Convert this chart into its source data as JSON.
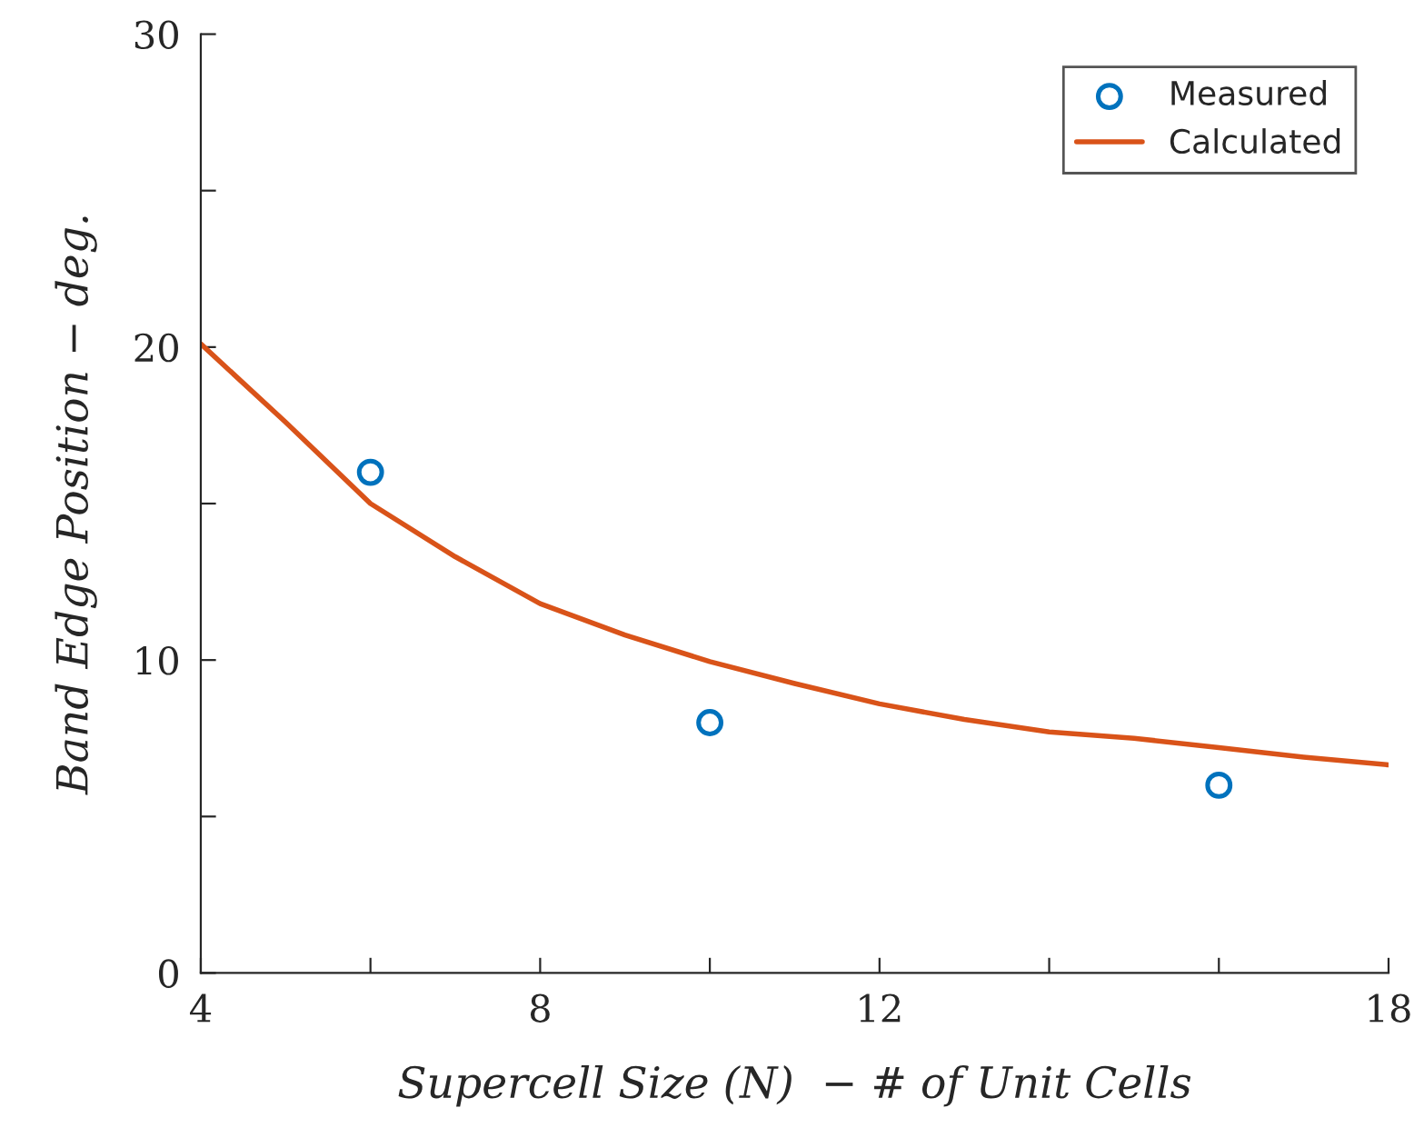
{
  "chart_data": {
    "type": "scatter",
    "xlabel": "Supercell Size (N)  − # of Unit Cells",
    "ylabel": "Band Edge Position − deg.",
    "xlim": [
      4,
      18
    ],
    "ylim": [
      0,
      30
    ],
    "xticks": [
      4,
      {
        "value": 6,
        "label": null
      },
      8,
      {
        "value": 10,
        "label": null
      },
      12,
      {
        "value": 14,
        "label": null
      },
      {
        "value": 16,
        "label": null
      },
      18
    ],
    "yticks": [
      0,
      {
        "value": 5,
        "label": null
      },
      10,
      {
        "value": 15,
        "label": null
      },
      20,
      {
        "value": 25,
        "label": null
      },
      30
    ],
    "legend": "top right",
    "grid": false,
    "series": [
      {
        "name": "Measured",
        "marker": "circle",
        "color": "#0072bd",
        "x": [
          6,
          10,
          16
        ],
        "values": [
          16,
          8,
          6
        ]
      },
      {
        "name": "Calculated",
        "type": "line",
        "marker": "none",
        "line_style": "solid",
        "color": "#d95319",
        "x": [
          4,
          5,
          6,
          7,
          8,
          9,
          10,
          11,
          12,
          13,
          14,
          15,
          16,
          17,
          18
        ],
        "values": [
          20.1,
          17.6,
          15.0,
          13.3,
          11.8,
          10.8,
          9.95,
          9.25,
          8.6,
          8.1,
          7.7,
          7.5,
          7.2,
          6.9,
          6.65
        ]
      }
    ]
  }
}
